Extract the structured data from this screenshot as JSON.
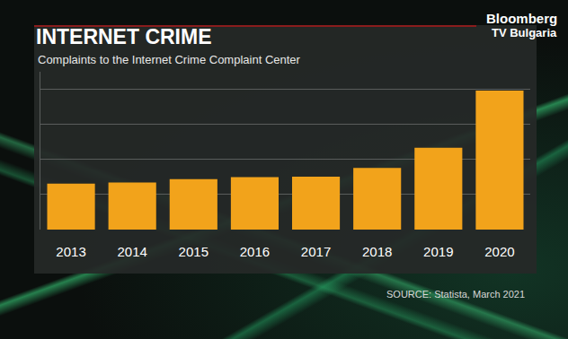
{
  "chart_data": {
    "type": "bar",
    "title": "INTERNET CRIME",
    "subtitle": "Complaints to the Internet Crime Complaint Center",
    "source": "SOURCE: Statista, March 2021",
    "logo": [
      "Bloomberg",
      "TV Bulgaria"
    ],
    "categories": [
      "2013",
      "2014",
      "2015",
      "2016",
      "2017",
      "2018",
      "2019",
      "2020"
    ],
    "values": [
      262000,
      269000,
      288000,
      299000,
      302000,
      352000,
      467000,
      792000
    ],
    "color": "#f2a31b",
    "ylim": [
      0,
      900000
    ],
    "yticks": [
      0,
      200000,
      400000,
      600000,
      800000
    ],
    "grid": true,
    "tick_labels": "x"
  }
}
